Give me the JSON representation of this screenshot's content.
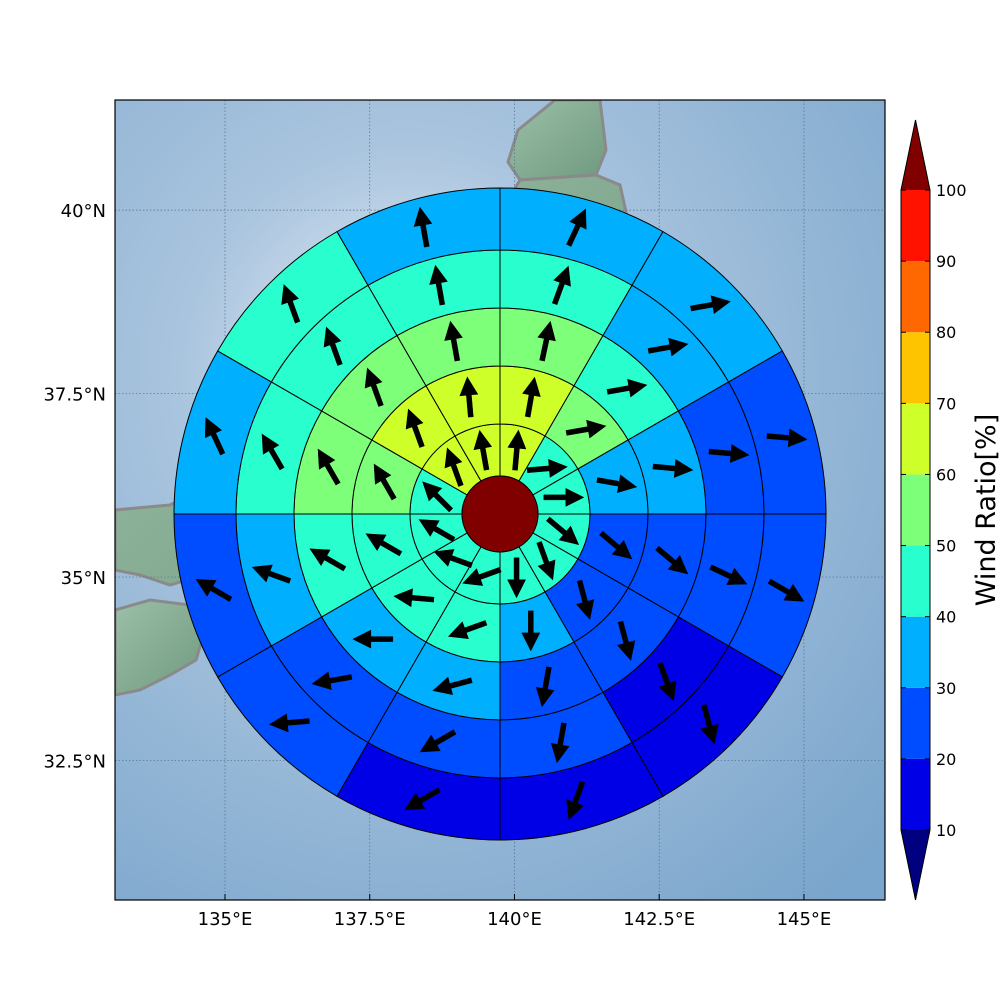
{
  "chart_data": {
    "type": "polar-sector-map",
    "title": "",
    "map": {
      "lon_range": [
        133.1,
        146.4
      ],
      "lat_range": [
        30.6,
        41.5
      ],
      "lon_ticks": [
        {
          "value": 135,
          "label": "135°E"
        },
        {
          "value": 137.5,
          "label": "137.5°E"
        },
        {
          "value": 140,
          "label": "140°E"
        },
        {
          "value": 142.5,
          "label": "142.5°E"
        },
        {
          "value": 145,
          "label": "145°E"
        }
      ],
      "lat_ticks": [
        {
          "value": 32.5,
          "label": "32.5°N"
        },
        {
          "value": 35,
          "label": "35°N"
        },
        {
          "value": 37.5,
          "label": "37.5°N"
        },
        {
          "value": 40,
          "label": "40°N"
        }
      ],
      "grid": true,
      "coastlines": true
    },
    "center": {
      "lon": 139.75,
      "lat": 35.86,
      "value": 100
    },
    "n_rings": 5,
    "n_sectors": 12,
    "sector_note": "sector 0 starts at north and sectors proceed clockwise; arrow_dir is compass degrees (0 = north, clockwise)",
    "rings": [
      {
        "ring": 1,
        "values": [
          64,
          45,
          45,
          45,
          45,
          42,
          42,
          40,
          40,
          45,
          62,
          64
        ],
        "arrow_dir": [
          5,
          85,
          90,
          130,
          160,
          180,
          250,
          290,
          300,
          315,
          340,
          350
        ]
      },
      {
        "ring": 2,
        "values": [
          64,
          55,
          35,
          22,
          22,
          35,
          42,
          42,
          42,
          55,
          64,
          64
        ],
        "arrow_dir": [
          10,
          80,
          100,
          130,
          165,
          180,
          250,
          275,
          300,
          330,
          340,
          355
        ]
      },
      {
        "ring": 3,
        "values": [
          55,
          45,
          32,
          25,
          22,
          25,
          35,
          35,
          42,
          50,
          55,
          55
        ],
        "arrow_dir": [
          12,
          80,
          95,
          130,
          165,
          190,
          255,
          270,
          300,
          330,
          340,
          350
        ]
      },
      {
        "ring": 4,
        "values": [
          45,
          32,
          25,
          22,
          14,
          22,
          25,
          25,
          35,
          45,
          45,
          45
        ],
        "arrow_dir": [
          20,
          80,
          95,
          115,
          160,
          190,
          240,
          260,
          290,
          330,
          340,
          350
        ]
      },
      {
        "ring": 5,
        "values": [
          35,
          32,
          22,
          22,
          14,
          12,
          18,
          22,
          25,
          35,
          42,
          35
        ],
        "arrow_dir": [
          25,
          80,
          95,
          120,
          165,
          200,
          240,
          265,
          300,
          335,
          340,
          350
        ]
      }
    ],
    "colorbar": {
      "label": "Wind Ratio[%]",
      "ticks": [
        10,
        20,
        30,
        40,
        50,
        60,
        70,
        80,
        90,
        100
      ],
      "tick_labels": [
        "10",
        "20",
        "30",
        "40",
        "50",
        "60",
        "70",
        "80",
        "90",
        "100"
      ],
      "under_color": "#000080",
      "over_color": "#800000",
      "colors": [
        "#0000e6",
        "#004dff",
        "#00b0ff",
        "#29ffce",
        "#7dff7a",
        "#ceff29",
        "#ffc400",
        "#ff6800",
        "#ff1300"
      ]
    }
  }
}
